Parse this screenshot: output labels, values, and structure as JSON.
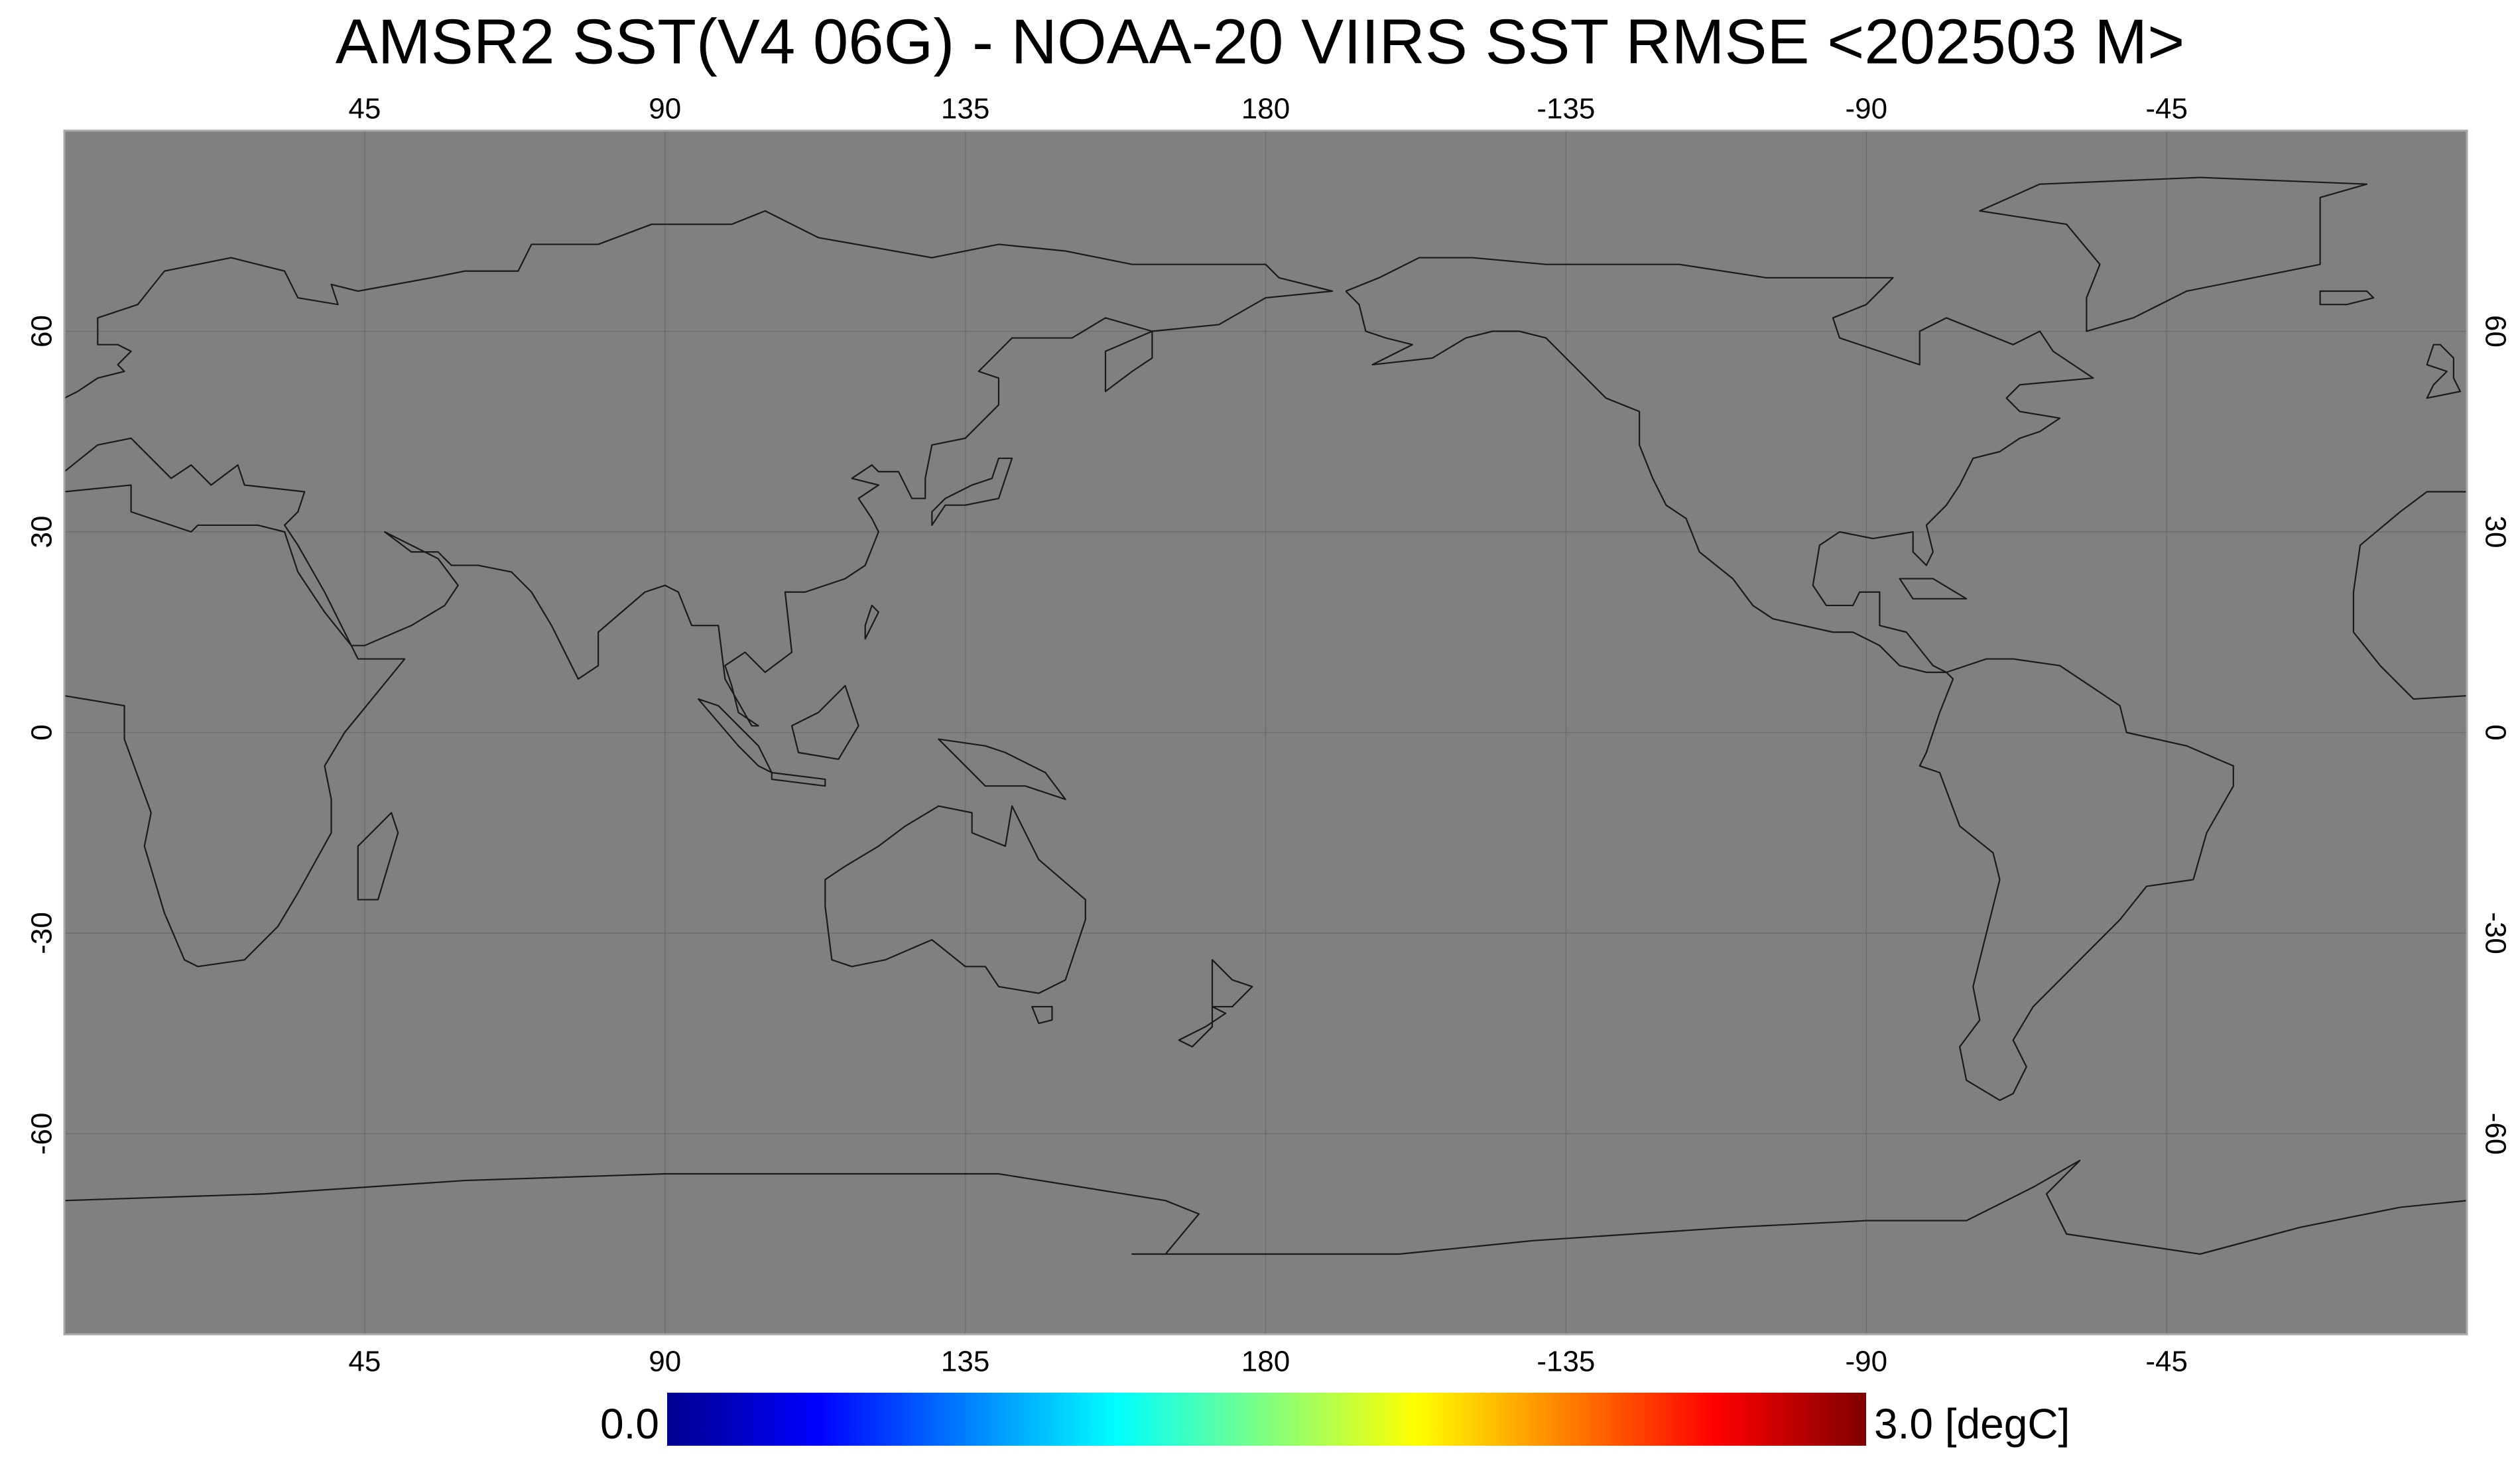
{
  "chart_data": {
    "type": "map",
    "title": "AMSR2 SST(V4 06G) - NOAA-20 VIIRS SST RMSE <202503 M>",
    "xlim": [
      0,
      360
    ],
    "ylim": [
      -90,
      90
    ],
    "xticks": [
      45,
      90,
      135,
      180,
      -135,
      -90,
      -45
    ],
    "yticks": [
      60,
      30,
      0,
      -30,
      -60
    ],
    "grid": true,
    "map_color": "#808080",
    "colorbar": {
      "min": {
        "value": 0,
        "label": "0.0"
      },
      "max": {
        "value": 3,
        "label": "3.0 [degC]"
      },
      "colors": [
        "#00008f",
        "#0000ff",
        "#0080ff",
        "#00ffff",
        "#80ff80",
        "#ffff00",
        "#ff8000",
        "#ff0000",
        "#800000"
      ]
    }
  }
}
